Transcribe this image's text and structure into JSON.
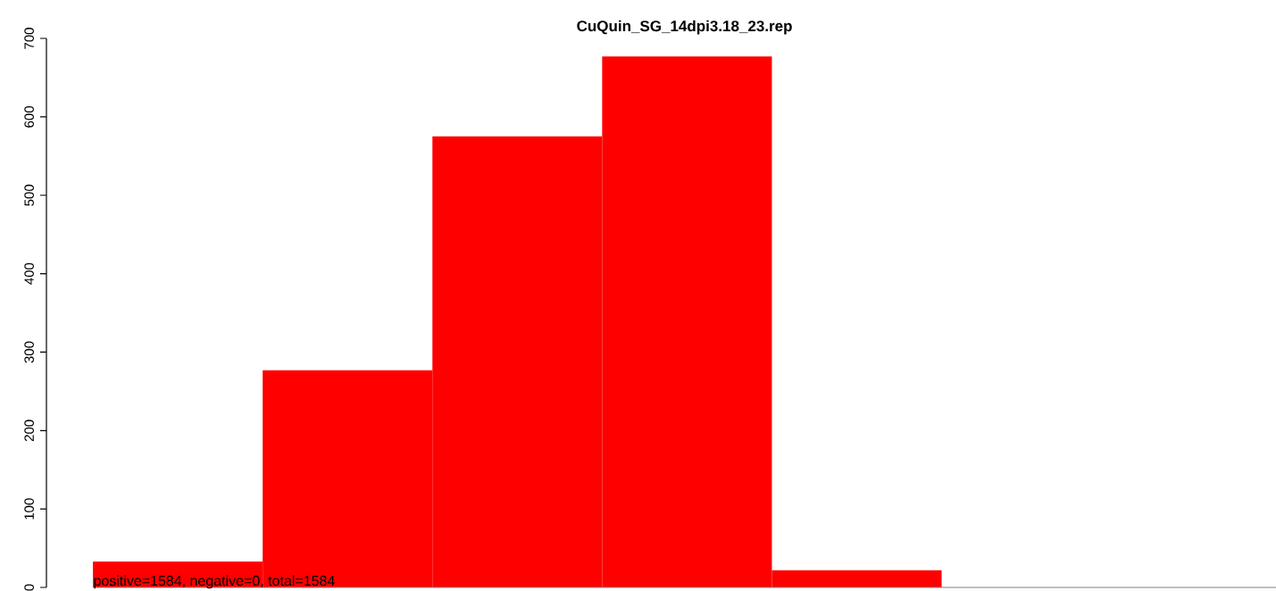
{
  "chart_data": {
    "type": "bar",
    "title": "CuQuin_SG_14dpi3.18_23.rep",
    "categories": [
      null,
      null,
      null,
      null,
      null
    ],
    "values": [
      33,
      277,
      575,
      677,
      22
    ],
    "color": "#ff0000",
    "ylim": [
      0,
      700
    ],
    "yticks": [
      0,
      100,
      200,
      300,
      400,
      500,
      600,
      700
    ],
    "annotations": [
      "positive=1584, negative=0, total=1584"
    ]
  }
}
